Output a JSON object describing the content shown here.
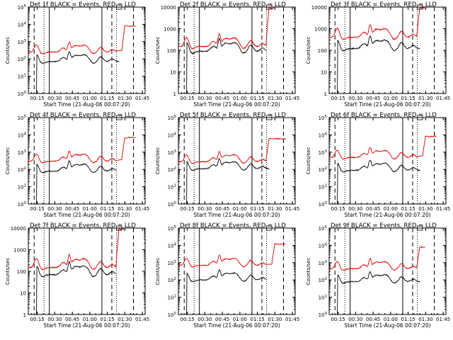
{
  "figure": {
    "x_axis_label": "Start Time (21-Aug-06 00:07:20)",
    "y_axis_label": "Counts/sec",
    "x_ticks": [
      "00:15",
      "00:30",
      "00:45",
      "01:00",
      "01:15",
      "01:30",
      "01:45"
    ],
    "legend_text": "BLACK = Events, RED = LLD",
    "colors": {
      "events": "#000000",
      "lld": "#e00000",
      "background": "#ffffff"
    }
  },
  "chart_data": [
    {
      "type": "line",
      "title": "Det 1f BLACK = Events, RED = LLD",
      "y_scale": "log",
      "yticks_style": "exp",
      "ylim": [
        1,
        100000
      ],
      "yticks": [
        "10^0",
        "10^1",
        "10^2",
        "10^3",
        "10^4",
        "10^5"
      ],
      "xlim_minutes": [
        0,
        100
      ],
      "x_tick_minutes": [
        7.67,
        22.67,
        37.67,
        52.67,
        67.67,
        82.67,
        97.67
      ],
      "vlines_solid": [
        18.0,
        63.0
      ],
      "vlines_dashed": [
        5.0,
        71.5,
        90.0
      ],
      "vlines_dotted": [
        13.5,
        75.5
      ],
      "overlap_box_minutes": [
        75.5,
        80.0
      ],
      "series": [
        {
          "name": "Events",
          "color": "#000000",
          "base": 70,
          "end_minute": 78,
          "after_segment": null
        },
        {
          "name": "LLD",
          "color": "#e00000",
          "base": 250,
          "end_minute": 75,
          "after_segment": {
            "start": 80,
            "end": 92,
            "level": 8000
          }
        }
      ]
    },
    {
      "type": "line",
      "title": "Det 2f BLACK = Events, RED = LLD",
      "y_scale": "log",
      "yticks_style": "plain",
      "ylim": [
        1,
        10000
      ],
      "yticks": [
        "1",
        "10",
        "100",
        "1000",
        "10000"
      ],
      "xlim_minutes": [
        0,
        100
      ],
      "x_tick_minutes": [
        7.67,
        22.67,
        37.67,
        52.67,
        67.67,
        82.67,
        97.67
      ],
      "vlines_solid": [
        18.0,
        63.0
      ],
      "vlines_dashed": [
        5.0,
        71.5,
        90.0
      ],
      "vlines_dotted": [
        13.5,
        75.5
      ],
      "overlap_box_minutes": [
        75.5,
        80.0
      ],
      "series": [
        {
          "name": "Events",
          "color": "#000000",
          "base": 90,
          "end_minute": 75,
          "after_segment": null
        },
        {
          "name": "LLD",
          "color": "#e00000",
          "base": 150,
          "end_minute": 75,
          "after_segment": {
            "start": 75,
            "end": 82,
            "level": 9000
          }
        }
      ]
    },
    {
      "type": "line",
      "title": "Det 3f BLACK = Events, RED = LLD",
      "y_scale": "log",
      "yticks_style": "plain",
      "ylim": [
        1,
        10000
      ],
      "yticks": [
        "1",
        "10",
        "100",
        "1000",
        "10000"
      ],
      "xlim_minutes": [
        0,
        100
      ],
      "x_tick_minutes": [
        7.67,
        22.67,
        37.67,
        52.67,
        67.67,
        82.67,
        97.67
      ],
      "vlines_solid": [
        18.0,
        63.0
      ],
      "vlines_dashed": [
        5.0,
        71.5,
        90.0
      ],
      "vlines_dotted": [
        13.5,
        75.5
      ],
      "overlap_box_minutes": [
        75.5,
        80.0
      ],
      "series": [
        {
          "name": "Events",
          "color": "#000000",
          "base": 120,
          "end_minute": 78,
          "after_segment": null
        },
        {
          "name": "LLD",
          "color": "#e00000",
          "base": 400,
          "end_minute": 75,
          "after_segment": {
            "start": 75,
            "end": 82,
            "level": 9000
          }
        }
      ]
    },
    {
      "type": "line",
      "title": "Det 4f BLACK = Events, RED = LLD",
      "y_scale": "log",
      "yticks_style": "exp",
      "ylim": [
        1,
        100000
      ],
      "yticks": [
        "10^0",
        "10^1",
        "10^2",
        "10^3",
        "10^4",
        "10^5"
      ],
      "xlim_minutes": [
        0,
        100
      ],
      "x_tick_minutes": [
        7.67,
        22.67,
        37.67,
        52.67,
        67.67,
        82.67,
        97.67
      ],
      "vlines_solid": [
        18.0,
        63.0
      ],
      "vlines_dashed": [
        5.0,
        71.5,
        90.0
      ],
      "vlines_dotted": [
        13.5,
        75.5
      ],
      "overlap_box_minutes": [
        75.5,
        80.0
      ],
      "series": [
        {
          "name": "Events",
          "color": "#000000",
          "base": 80,
          "end_minute": 75,
          "after_segment": null
        },
        {
          "name": "LLD",
          "color": "#e00000",
          "base": 300,
          "end_minute": 75,
          "after_segment": {
            "start": 80,
            "end": 92,
            "level": 7000
          }
        }
      ]
    },
    {
      "type": "line",
      "title": "Det 5f BLACK = Events, RED = LLD",
      "y_scale": "log",
      "yticks_style": "exp",
      "ylim": [
        1,
        100000
      ],
      "yticks": [
        "10^0",
        "10^1",
        "10^2",
        "10^3",
        "10^4",
        "10^5"
      ],
      "xlim_minutes": [
        0,
        100
      ],
      "x_tick_minutes": [
        7.67,
        22.67,
        37.67,
        52.67,
        67.67,
        82.67,
        97.67
      ],
      "vlines_solid": [
        18.0,
        63.0
      ],
      "vlines_dashed": [
        5.0,
        71.5,
        90.0
      ],
      "vlines_dotted": [
        13.5,
        75.5
      ],
      "overlap_box_minutes": [
        75.5,
        80.0
      ],
      "series": [
        {
          "name": "Events",
          "color": "#000000",
          "base": 110,
          "end_minute": 78,
          "after_segment": null
        },
        {
          "name": "LLD",
          "color": "#e00000",
          "base": 280,
          "end_minute": 75,
          "after_segment": {
            "start": 75,
            "end": 92,
            "level": 6000
          }
        }
      ]
    },
    {
      "type": "line",
      "title": "Det 6f BLACK = Events, RED = LLD",
      "y_scale": "log",
      "yticks_style": "exp",
      "ylim": [
        1,
        100000
      ],
      "yticks": [
        "10^0",
        "10^1",
        "10^2",
        "10^3",
        "10^4",
        "10^5"
      ],
      "xlim_minutes": [
        0,
        100
      ],
      "x_tick_minutes": [
        7.67,
        22.67,
        37.67,
        52.67,
        67.67,
        82.67,
        97.67
      ],
      "vlines_solid": [
        18.0,
        63.0
      ],
      "vlines_dashed": [
        5.0,
        71.5,
        90.0
      ],
      "vlines_dotted": [
        13.5,
        75.5
      ],
      "overlap_box_minutes": [
        75.5,
        80.0
      ],
      "series": [
        {
          "name": "Events",
          "color": "#000000",
          "base": 90,
          "end_minute": 78,
          "after_segment": null
        },
        {
          "name": "LLD",
          "color": "#e00000",
          "base": 500,
          "end_minute": 75,
          "after_segment": {
            "start": 80,
            "end": 92,
            "level": 8000
          }
        }
      ]
    },
    {
      "type": "line",
      "title": "Det 7f BLACK = Events, RED = LLD",
      "y_scale": "log",
      "yticks_style": "plain",
      "ylim": [
        1,
        10000
      ],
      "yticks": [
        "1",
        "10",
        "100",
        "1000",
        "10000"
      ],
      "xlim_minutes": [
        0,
        100
      ],
      "x_tick_minutes": [
        7.67,
        22.67,
        37.67,
        52.67,
        67.67,
        82.67,
        97.67
      ],
      "vlines_solid": [
        18.0,
        63.0
      ],
      "vlines_dashed": [
        5.0,
        71.5,
        90.0
      ],
      "vlines_dotted": [
        13.5,
        75.5
      ],
      "overlap_box_minutes": [
        75.5,
        80.0
      ],
      "series": [
        {
          "name": "Events",
          "color": "#000000",
          "base": 70,
          "end_minute": 75,
          "after_segment": null
        },
        {
          "name": "LLD",
          "color": "#e00000",
          "base": 150,
          "end_minute": 75,
          "after_segment": {
            "start": 75,
            "end": 82,
            "level": 9000
          }
        }
      ]
    },
    {
      "type": "line",
      "title": "Det 8f BLACK = Events, RED = LLD",
      "y_scale": "log",
      "yticks_style": "exp",
      "ylim": [
        1,
        100000
      ],
      "yticks": [
        "10^0",
        "10^1",
        "10^2",
        "10^3",
        "10^4",
        "10^5"
      ],
      "xlim_minutes": [
        0,
        100
      ],
      "x_tick_minutes": [
        7.67,
        22.67,
        37.67,
        52.67,
        67.67,
        82.67,
        97.67
      ],
      "vlines_solid": [
        18.0,
        63.0
      ],
      "vlines_dashed": [
        5.0,
        71.5,
        90.0
      ],
      "vlines_dotted": [
        13.5,
        75.5
      ],
      "overlap_box_minutes": [
        75.5,
        80.0
      ],
      "series": [
        {
          "name": "Events",
          "color": "#000000",
          "base": 100,
          "end_minute": 75,
          "after_segment": null
        },
        {
          "name": "LLD",
          "color": "#e00000",
          "base": 700,
          "end_minute": 75,
          "after_segment": {
            "start": 80,
            "end": 92,
            "level": 12000
          }
        }
      ]
    },
    {
      "type": "line",
      "title": "Det 9f BLACK = Events, RED = LLD",
      "y_scale": "log",
      "yticks_style": "exp",
      "ylim": [
        1,
        100000
      ],
      "yticks": [
        "10^0",
        "10^1",
        "10^2",
        "10^3",
        "10^4",
        "10^5"
      ],
      "xlim_minutes": [
        0,
        100
      ],
      "x_tick_minutes": [
        7.67,
        22.67,
        37.67,
        52.67,
        67.67,
        82.67,
        97.67
      ],
      "vlines_solid": [
        18.0,
        63.0
      ],
      "vlines_dashed": [
        5.0,
        71.5,
        90.0
      ],
      "vlines_dotted": [
        13.5,
        75.5
      ],
      "overlap_box_minutes": [
        75.5,
        80.0
      ],
      "series": [
        {
          "name": "Events",
          "color": "#000000",
          "base": 80,
          "end_minute": 78,
          "after_segment": null
        },
        {
          "name": "LLD",
          "color": "#e00000",
          "base": 450,
          "end_minute": 75,
          "after_segment": {
            "start": 75,
            "end": 82,
            "level": 8000
          }
        }
      ]
    }
  ]
}
